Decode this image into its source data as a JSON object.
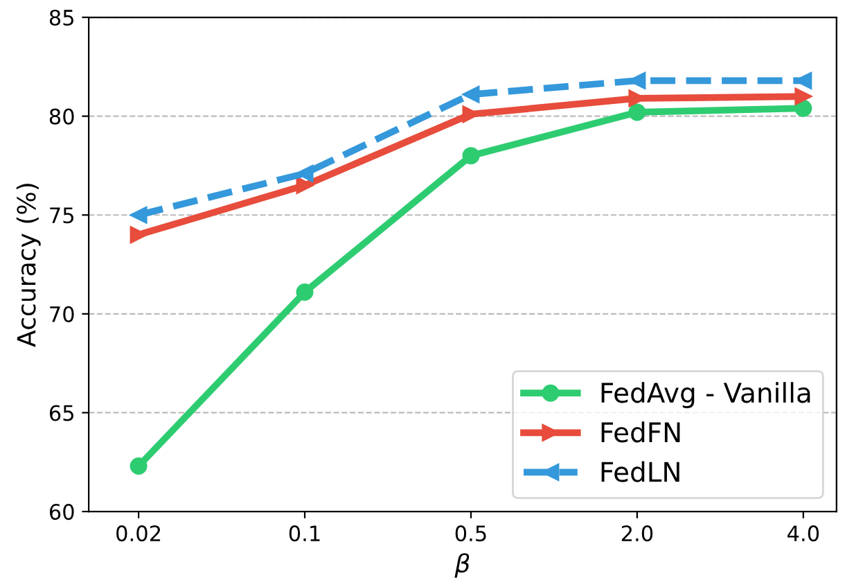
{
  "chart_data": {
    "type": "line",
    "xlabel": "β",
    "ylabel": "Accuracy (%)",
    "categories": [
      "0.02",
      "0.1",
      "0.5",
      "2.0",
      "4.0"
    ],
    "series": [
      {
        "name": "FedAvg - Vanilla",
        "color": "#2ecc71",
        "values": [
          62.3,
          71.1,
          78.0,
          80.2,
          80.4
        ],
        "marker": "circle",
        "line_style": "solid"
      },
      {
        "name": "FedFN",
        "color": "#e74c3c",
        "values": [
          74.0,
          76.5,
          80.1,
          80.9,
          81.0
        ],
        "marker": "triangle-right",
        "line_style": "solid"
      },
      {
        "name": "FedLN",
        "color": "#3498db",
        "values": [
          75.0,
          77.1,
          81.1,
          81.8,
          81.8
        ],
        "marker": "triangle-left",
        "line_style": "dashed"
      }
    ],
    "ylim": [
      60,
      85
    ],
    "yticks": [
      60,
      65,
      70,
      75,
      80,
      85
    ],
    "grid": "y",
    "legend": "bottom right"
  }
}
